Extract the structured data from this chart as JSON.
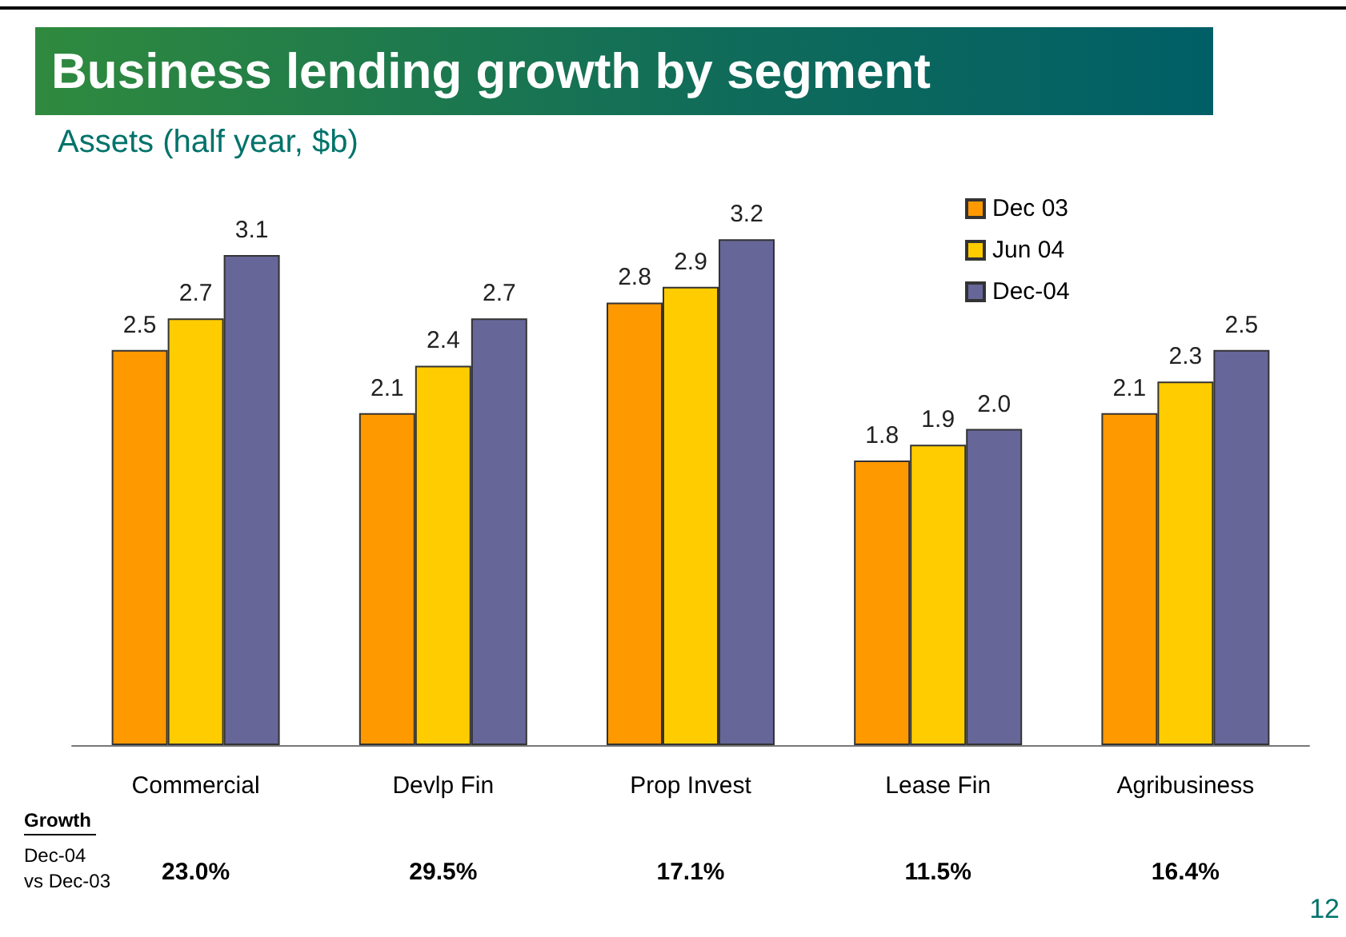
{
  "chart_data": {
    "type": "bar",
    "title": "Business lending growth by segment",
    "subtitle": "Assets (half year, $b)",
    "categories": [
      "Commercial",
      "Devlp Fin",
      "Prop Invest",
      "Lease Fin",
      "Agribusiness"
    ],
    "series": [
      {
        "name": "Dec 03",
        "color": "#ff9900",
        "values": [
          2.5,
          2.1,
          2.8,
          1.8,
          2.1
        ],
        "value_labels": [
          "2.5",
          "2.1",
          "2.8",
          "1.8",
          "2.1"
        ]
      },
      {
        "name": "Jun 04",
        "color": "#ffcc00",
        "values": [
          2.7,
          2.4,
          2.9,
          1.9,
          2.3
        ],
        "value_labels": [
          "2.7",
          "2.4",
          "2.9",
          "1.9",
          "2.3"
        ]
      },
      {
        "name": "Dec-04",
        "color": "#666699",
        "values": [
          3.1,
          2.7,
          3.2,
          2.0,
          2.5
        ],
        "value_labels": [
          "3.1",
          "2.7",
          "3.2",
          "2.0",
          "2.5"
        ]
      }
    ],
    "legend": "top right",
    "annotations": [
      "Growth",
      "Dec-04\nvs Dec-03",
      "23.0%",
      "29.5%",
      "17.1%",
      "11.5%",
      "16.4%",
      "12"
    ]
  }
}
